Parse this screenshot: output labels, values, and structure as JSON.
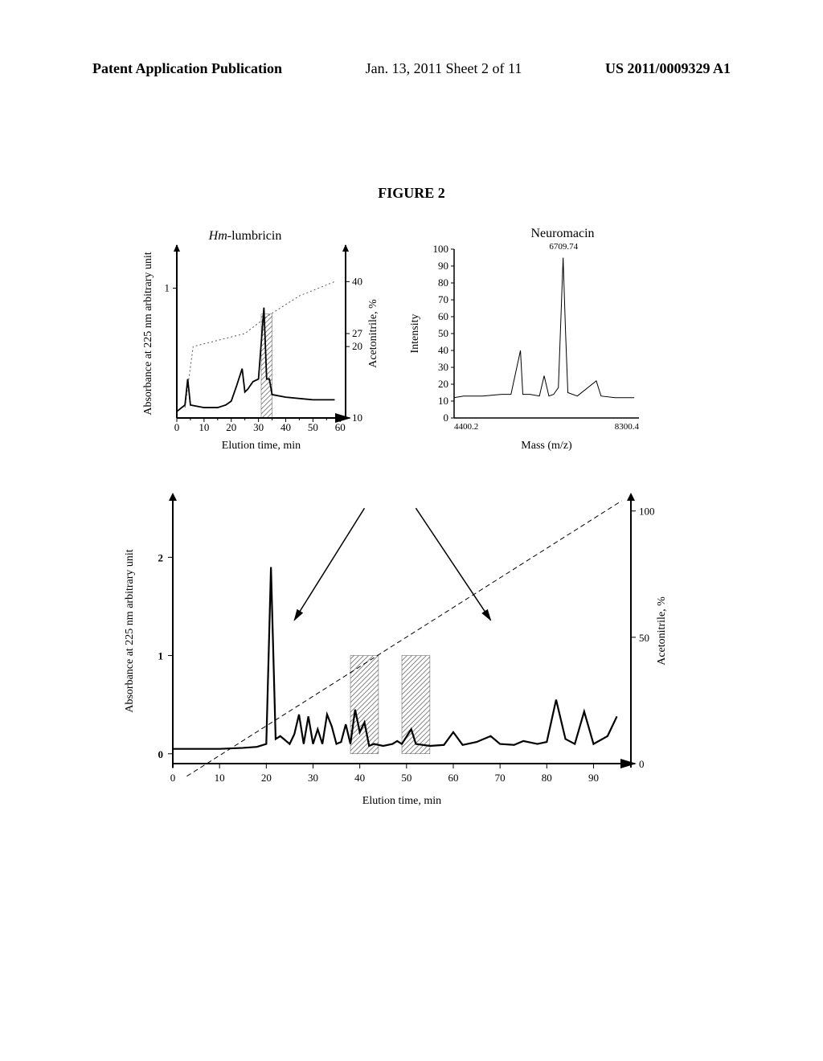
{
  "header": {
    "left": "Patent Application Publication",
    "center": "Jan. 13, 2011  Sheet 2 of 11",
    "right": "US 2011/0009329 A1"
  },
  "figureTitle": "FIGURE 2",
  "chartTopLeft": {
    "title": "Hm-lumbricin",
    "title_italic_part": "Hm-",
    "title_rest": "lumbricin",
    "ylabel": "Absorbance at 225 nm arbitrary unit",
    "y2label": "Acetonitrile, %",
    "xlabel": "Elution time,  min",
    "xticks": [
      0,
      10,
      20,
      30,
      40,
      50,
      60
    ],
    "yticks": [
      1
    ],
    "y2ticks": [
      10,
      20,
      27,
      40
    ],
    "xlim": [
      0,
      62
    ],
    "ylim": [
      0,
      1.3
    ],
    "y2lim": [
      0,
      45
    ],
    "hatchedBar": {
      "x": 31,
      "width": 4,
      "height": 0.8
    },
    "absorbance_line": [
      [
        0,
        0.05
      ],
      [
        3,
        0.1
      ],
      [
        4,
        0.3
      ],
      [
        5,
        0.1
      ],
      [
        10,
        0.08
      ],
      [
        15,
        0.08
      ],
      [
        18,
        0.1
      ],
      [
        20,
        0.13
      ],
      [
        22,
        0.25
      ],
      [
        24,
        0.38
      ],
      [
        25,
        0.2
      ],
      [
        26,
        0.22
      ],
      [
        28,
        0.28
      ],
      [
        30,
        0.3
      ],
      [
        32,
        0.85
      ],
      [
        33,
        0.3
      ],
      [
        34,
        0.3
      ],
      [
        35,
        0.18
      ],
      [
        40,
        0.16
      ],
      [
        50,
        0.14
      ],
      [
        58,
        0.14
      ]
    ],
    "gradient_line": [
      [
        3,
        0.08
      ],
      [
        6,
        0.55
      ],
      [
        25,
        0.65
      ],
      [
        33,
        0.78
      ],
      [
        45,
        0.94
      ],
      [
        58,
        1.05
      ]
    ],
    "y2_map_points": [
      [
        6,
        20
      ],
      [
        25,
        27
      ],
      [
        58,
        40
      ]
    ],
    "line_color": "#000000"
  },
  "chartTopRight": {
    "title": "Neuromacin",
    "peak_label": "6709.74",
    "ylabel": "Intensity",
    "xlabel": "Mass (m/z)",
    "xticks_labels": [
      "4400.2",
      "8300.4"
    ],
    "yticks": [
      0,
      10,
      20,
      30,
      40,
      50,
      60,
      70,
      80,
      90,
      100
    ],
    "xlim": [
      4400,
      8300
    ],
    "ylim": [
      0,
      100
    ],
    "spectrum": [
      [
        4400,
        12
      ],
      [
        4600,
        13
      ],
      [
        4800,
        13
      ],
      [
        5000,
        13
      ],
      [
        5400,
        14
      ],
      [
        5600,
        14
      ],
      [
        5800,
        40
      ],
      [
        5850,
        14
      ],
      [
        6000,
        14
      ],
      [
        6200,
        13
      ],
      [
        6300,
        25
      ],
      [
        6400,
        13
      ],
      [
        6500,
        14
      ],
      [
        6600,
        18
      ],
      [
        6700,
        95
      ],
      [
        6750,
        52
      ],
      [
        6800,
        15
      ],
      [
        7000,
        13
      ],
      [
        7400,
        22
      ],
      [
        7500,
        13
      ],
      [
        7800,
        12
      ],
      [
        8200,
        12
      ]
    ],
    "line_color": "#000000"
  },
  "chartBottom": {
    "ylabel": "Absorbance at 225 nm arbitrary unit",
    "y2label": "Acetonitrile, %",
    "xlabel": "Elution time, min",
    "xticks": [
      0,
      10,
      20,
      30,
      40,
      50,
      60,
      70,
      80,
      90
    ],
    "yticks": [
      0,
      1,
      2
    ],
    "y2ticks": [
      0,
      50,
      100
    ],
    "xlim": [
      0,
      98
    ],
    "ylim": [
      -0.1,
      2.6
    ],
    "y2lim": [
      0,
      105
    ],
    "hatchedBars": [
      {
        "x": 38,
        "width": 6,
        "height": 1.0
      },
      {
        "x": 49,
        "width": 6,
        "height": 1.0
      }
    ],
    "absorbance_line": [
      [
        0,
        0.05
      ],
      [
        5,
        0.05
      ],
      [
        10,
        0.05
      ],
      [
        15,
        0.06
      ],
      [
        18,
        0.07
      ],
      [
        20,
        0.1
      ],
      [
        21,
        1.9
      ],
      [
        22,
        0.15
      ],
      [
        23,
        0.18
      ],
      [
        25,
        0.1
      ],
      [
        26,
        0.2
      ],
      [
        27,
        0.4
      ],
      [
        28,
        0.1
      ],
      [
        29,
        0.38
      ],
      [
        30,
        0.1
      ],
      [
        31,
        0.25
      ],
      [
        32,
        0.1
      ],
      [
        33,
        0.4
      ],
      [
        34,
        0.28
      ],
      [
        35,
        0.1
      ],
      [
        36,
        0.12
      ],
      [
        37,
        0.3
      ],
      [
        38,
        0.1
      ],
      [
        39,
        0.45
      ],
      [
        40,
        0.22
      ],
      [
        41,
        0.32
      ],
      [
        42,
        0.08
      ],
      [
        43,
        0.1
      ],
      [
        45,
        0.08
      ],
      [
        47,
        0.1
      ],
      [
        48,
        0.13
      ],
      [
        49,
        0.1
      ],
      [
        51,
        0.25
      ],
      [
        52,
        0.1
      ],
      [
        55,
        0.08
      ],
      [
        58,
        0.09
      ],
      [
        60,
        0.22
      ],
      [
        62,
        0.09
      ],
      [
        65,
        0.12
      ],
      [
        68,
        0.18
      ],
      [
        70,
        0.1
      ],
      [
        73,
        0.09
      ],
      [
        75,
        0.13
      ],
      [
        78,
        0.1
      ],
      [
        80,
        0.12
      ],
      [
        82,
        0.55
      ],
      [
        84,
        0.15
      ],
      [
        86,
        0.1
      ],
      [
        88,
        0.43
      ],
      [
        90,
        0.1
      ],
      [
        93,
        0.18
      ],
      [
        95,
        0.38
      ]
    ],
    "gradient_line": [
      [
        3,
        -0.05
      ],
      [
        96,
        1.04
      ]
    ],
    "arrows": [
      {
        "from": [
          41,
          2.5
        ],
        "to": [
          26,
          1.36
        ],
        "target": "top-left"
      },
      {
        "from": [
          52,
          2.5
        ],
        "to": [
          68,
          1.36
        ],
        "target": "top-right"
      }
    ],
    "line_color": "#000000"
  },
  "colors": {
    "axis": "#000000",
    "hatch": "#888888",
    "dotted": "#666666",
    "background": "#ffffff"
  }
}
